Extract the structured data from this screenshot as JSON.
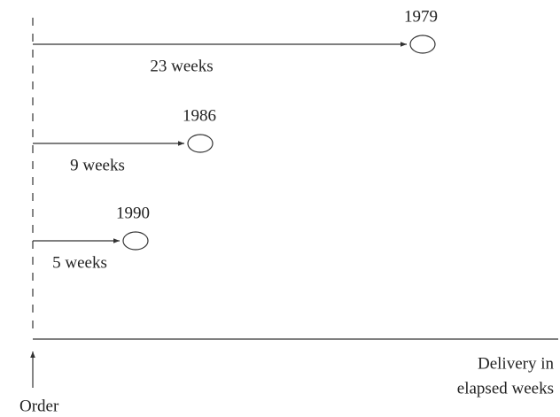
{
  "events": [
    {
      "year": "1979",
      "duration": "23 weeks"
    },
    {
      "year": "1986",
      "duration": "9 weeks"
    },
    {
      "year": "1990",
      "duration": "5 weeks"
    }
  ],
  "axis_label": [
    "Delivery in",
    "elapsed weeks"
  ],
  "origin_label": "Order"
}
